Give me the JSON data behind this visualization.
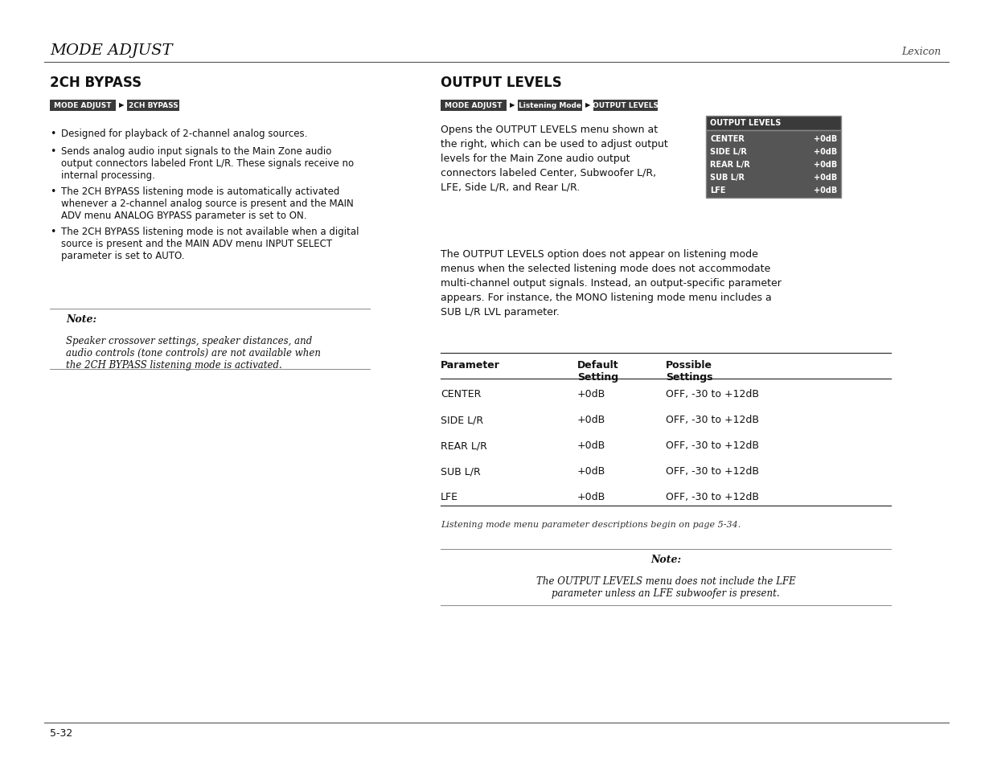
{
  "page_bg": "#ffffff",
  "header_title": "MODE ADJUST",
  "header_right": "Lexicon",
  "footer_text": "5-32",
  "left_section_title": "2CH BYPASS",
  "left_breadcrumb": [
    "MODE ADJUST",
    "2CH BYPASS"
  ],
  "left_bullets": [
    "Designed for playback of 2-channel analog sources.",
    "Sends analog audio input signals to the Main Zone audio\noutput connectors labeled Front L/R. These signals receive no\ninternal processing.",
    "The 2CH BYPASS listening mode is automatically activated\nwhenever a 2-channel analog source is present and the MAIN\nADV menu ANALOG BYPASS parameter is set to ON.",
    "The 2CH BYPASS listening mode is not available when a digital\nsource is present and the MAIN ADV menu INPUT SELECT\nparameter is set to AUTO."
  ],
  "left_note_title": "Note:",
  "left_note_body": "Speaker crossover settings, speaker distances, and\naudio controls (tone controls) are not available when\nthe 2CH BYPASS listening mode is activated.",
  "right_section_title": "OUTPUT LEVELS",
  "right_breadcrumb": [
    "MODE ADJUST",
    "Listening Mode",
    "OUTPUT LEVELS"
  ],
  "right_para1": "Opens the OUTPUT LEVELS menu shown at\nthe right, which can be used to adjust output\nlevels for the Main Zone audio output\nconnectors labeled Center, Subwoofer L/R,\nLFE, Side L/R, and Rear L/R.",
  "display_box_title": "OUTPUT LEVELS",
  "display_rows": [
    [
      "CENTER",
      "+0dB"
    ],
    [
      "SIDE L/R",
      "+0dB"
    ],
    [
      "REAR L/R",
      "+0dB"
    ],
    [
      "SUB L/R",
      "+0dB"
    ],
    [
      "LFE",
      "+0dB"
    ]
  ],
  "right_para2": "The OUTPUT LEVELS option does not appear on listening mode\nmenus when the selected listening mode does not accommodate\nmulti-channel output signals. Instead, an output-specific parameter\nappears. For instance, the MONO listening mode menu includes a\nSUB L/R LVL parameter.",
  "table_header": [
    "Parameter",
    "Default\nSetting",
    "Possible\nSettings"
  ],
  "table_rows": [
    [
      "CENTER",
      "+0dB",
      "OFF, -30 to +12dB"
    ],
    [
      "SIDE L/R",
      "+0dB",
      "OFF, -30 to +12dB"
    ],
    [
      "REAR L/R",
      "+0dB",
      "OFF, -30 to +12dB"
    ],
    [
      "SUB L/R",
      "+0dB",
      "OFF, -30 to +12dB"
    ],
    [
      "LFE",
      "+0dB",
      "OFF, -30 to +12dB"
    ]
  ],
  "table_note": "Listening mode menu parameter descriptions begin on page 5-34.",
  "right_note_title": "Note:",
  "right_note_body": "The OUTPUT LEVELS menu does not include the LFE\nparameter unless an LFE subwoofer is present.",
  "badge_bg": "#3a3a3a",
  "badge_text_color": "#ffffff",
  "display_bg": "#4a4a4a",
  "display_title_bg": "#3a3a3a"
}
